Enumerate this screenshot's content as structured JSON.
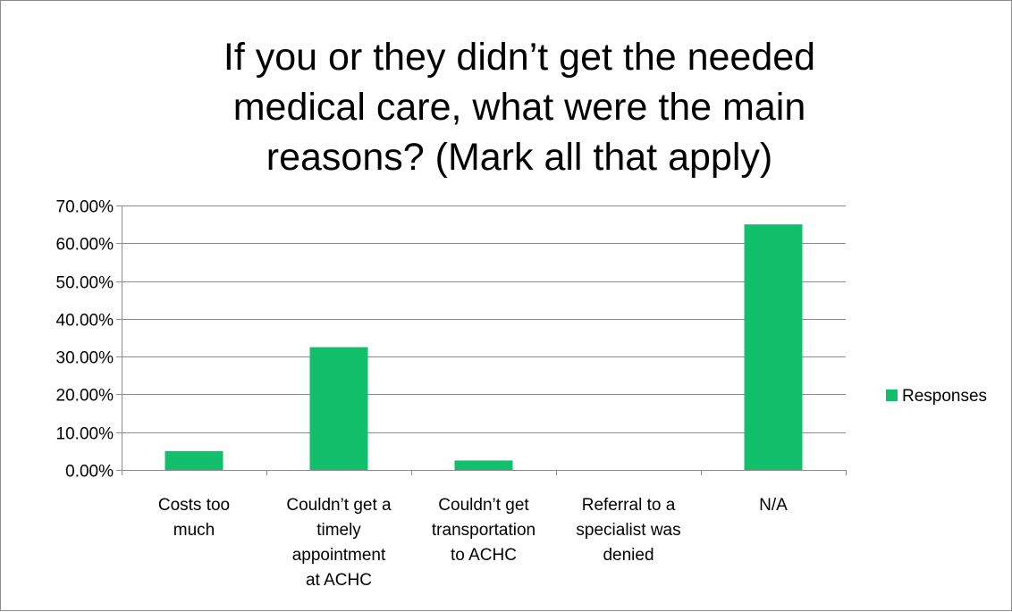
{
  "chart_data": {
    "type": "bar",
    "title_lines": [
      "If you or they didn’t get the needed",
      "medical care, what were the main",
      "reasons? (Mark all that apply)"
    ],
    "categories": [
      [
        "Costs too",
        "much"
      ],
      [
        "Couldn’t get a",
        "timely",
        "appointment",
        "at ACHC"
      ],
      [
        "Couldn’t get",
        "transportation",
        "to ACHC"
      ],
      [
        "Referral to a",
        "specialist was",
        "denied"
      ],
      [
        "N/A"
      ]
    ],
    "series": [
      {
        "name": "Responses",
        "values": [
          5.0,
          32.5,
          2.5,
          0.0,
          65.0
        ],
        "color": "#12c06b"
      }
    ],
    "ylim": [
      0,
      70
    ],
    "ytick_labels": [
      "0.00%",
      "10.00%",
      "20.00%",
      "30.00%",
      "40.00%",
      "50.00%",
      "60.00%",
      "70.00%"
    ],
    "grid": true,
    "legend_position": "right"
  }
}
